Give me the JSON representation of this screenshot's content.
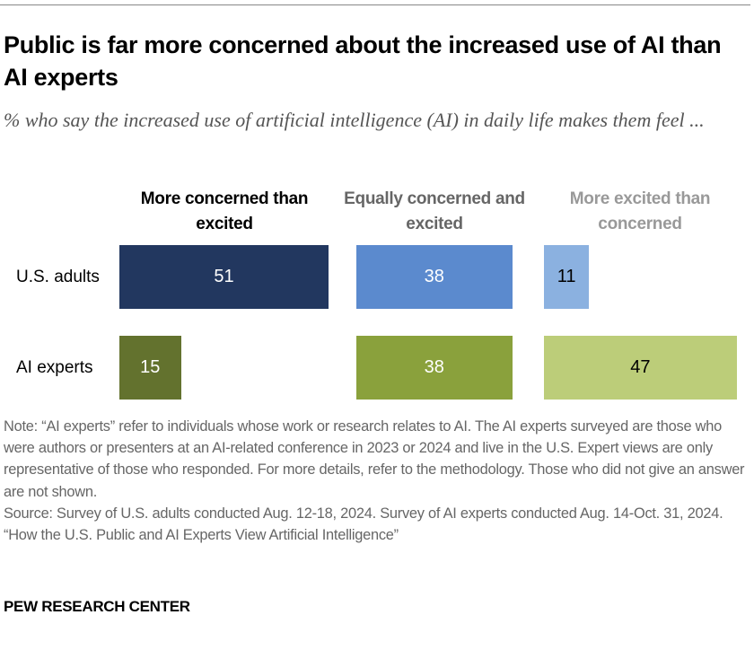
{
  "title": "Public is far more concerned about the increased use of AI than AI experts",
  "subtitle": "% who say the increased use of artificial intelligence (AI) in daily life makes them feel ...",
  "chart_data": {
    "type": "bar",
    "orientation": "horizontal",
    "layout": "side-by-side columns",
    "categories": [
      "U.S. adults",
      "AI experts"
    ],
    "series": [
      {
        "name": "More concerned than excited",
        "values": [
          51,
          15
        ],
        "colors": [
          "#22375f",
          "#63722e"
        ],
        "header_color": "#000000"
      },
      {
        "name": "Equally concerned and excited",
        "values": [
          38,
          38
        ],
        "colors": [
          "#5b8ace",
          "#8aa13c"
        ],
        "header_color": "#666666"
      },
      {
        "name": "More excited than concerned",
        "values": [
          11,
          47
        ],
        "colors": [
          "#8bb1e0",
          "#bccd79"
        ],
        "header_color": "#999999"
      }
    ],
    "label_colors": [
      [
        "#ffffff",
        "#ffffff",
        "#000000"
      ],
      [
        "#ffffff",
        "#ffffff",
        "#000000"
      ]
    ],
    "xlim": [
      0,
      51
    ],
    "grid": false
  },
  "note": "Note: “AI experts” refer to individuals whose work or research relates to AI. The AI experts surveyed are those who were authors or presenters at an AI-related conference in 2023 or 2024 and live in the U.S. Expert views are only representative of those who responded. For more details, refer to the methodology. Those who did not give an answer are not shown.",
  "source": "Source: Survey of U.S. adults conducted Aug. 12-18, 2024. Survey of AI experts conducted Aug. 14-Oct. 31, 2024.",
  "report": "“How the U.S. Public and AI Experts View Artificial Intelligence”",
  "brand": "PEW RESEARCH CENTER"
}
